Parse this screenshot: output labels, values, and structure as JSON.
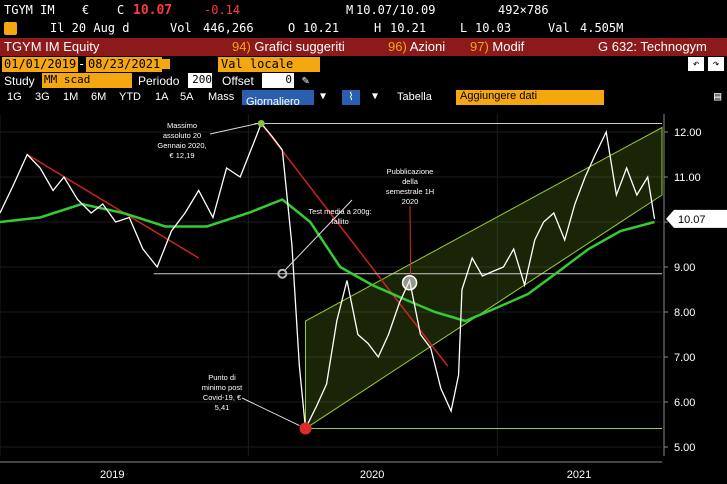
{
  "quote": {
    "ticker": "TGYM IM",
    "currency_sym": "€",
    "c_label": "C",
    "last": "10.07",
    "change": "-0.14",
    "m_label": "M",
    "bid_ask": "10.07/10.09",
    "size": "492×786",
    "date_line": "Il 20 Aug d",
    "vol_label": "Vol",
    "vol": "446,266",
    "o_label": "O",
    "open": "10.21",
    "h_label": "H",
    "high": "10.21",
    "l_label": "L",
    "low": "10.03",
    "val_label": "Val",
    "value": "4.505M"
  },
  "toolbar": {
    "security": "TGYM IM Equity",
    "menu1_num": "94)",
    "menu1": "Grafici suggeriti",
    "menu2_num": "96)",
    "menu2": "Azioni",
    "menu3_num": "97)",
    "menu3": "Modif",
    "page": "G 632: Technogym"
  },
  "range": {
    "start": "01/01/2019",
    "end": "08/23/2021",
    "currency": "Val locale",
    "study_label": "Study",
    "study": "MM scad",
    "period_label": "Periodo",
    "period": "200",
    "offset_label": "Offset",
    "offset": "0"
  },
  "periods": {
    "items": [
      "1G",
      "3G",
      "1M",
      "6M",
      "YTD",
      "1A",
      "5A",
      "Mass"
    ],
    "active": "Giornaliero",
    "table": "Tabella",
    "add_data": "Aggiungere dati"
  },
  "colors": {
    "price": "#ffffff",
    "ma200": "#33cc33",
    "down_trend": "#cc2222",
    "channel": "#9acd32",
    "amber": "#f4a70e",
    "bar_red": "#8c1a1a"
  },
  "chart_data": {
    "type": "line",
    "ylim": [
      4.8,
      12.4
    ],
    "x_labels": [
      "2019",
      "2020",
      "2021"
    ],
    "y_ticks": [
      5.0,
      6.0,
      7.0,
      8.0,
      9.0,
      10.0,
      11.0,
      12.0
    ],
    "last_price_label": "10.07",
    "series": [
      {
        "x": [
          "2019-01-01",
          "2019-01-20",
          "2019-02-10",
          "2019-03-01",
          "2019-03-20",
          "2019-04-05",
          "2019-04-25",
          "2019-05-15",
          "2019-06-01",
          "2019-06-20",
          "2019-07-10",
          "2019-07-30",
          "2019-08-20",
          "2019-09-10",
          "2019-09-30",
          "2019-10-20",
          "2019-11-10",
          "2019-11-30",
          "2019-12-20",
          "2020-01-10",
          "2020-01-20",
          "2020-02-05",
          "2020-02-20",
          "2020-03-05",
          "2020-03-16",
          "2020-03-25",
          "2020-04-10",
          "2020-04-25",
          "2020-05-10",
          "2020-05-25",
          "2020-06-10",
          "2020-06-25",
          "2020-07-10",
          "2020-07-25",
          "2020-08-10",
          "2020-08-25",
          "2020-09-10",
          "2020-09-25",
          "2020-10-10",
          "2020-10-25",
          "2020-11-05",
          "2020-11-10",
          "2020-11-25",
          "2020-12-10",
          "2020-12-25",
          "2021-01-10",
          "2021-01-25",
          "2021-02-10",
          "2021-02-25",
          "2021-03-10",
          "2021-03-25",
          "2021-04-10",
          "2021-04-25",
          "2021-05-10",
          "2021-05-25",
          "2021-06-10",
          "2021-06-25",
          "2021-07-10",
          "2021-07-25",
          "2021-08-10",
          "2021-08-20"
        ],
        "y": [
          10.2,
          10.8,
          11.5,
          11.2,
          10.7,
          11.0,
          10.5,
          10.2,
          10.4,
          10.0,
          10.1,
          9.4,
          9.0,
          9.8,
          10.2,
          10.7,
          10.1,
          11.2,
          11.0,
          11.8,
          12.19,
          11.9,
          11.6,
          9.5,
          6.8,
          5.41,
          5.9,
          6.4,
          7.8,
          8.7,
          7.5,
          7.3,
          7.0,
          7.5,
          8.2,
          8.7,
          7.5,
          7.2,
          6.3,
          5.8,
          6.6,
          8.5,
          9.2,
          8.8,
          8.9,
          9.0,
          9.4,
          8.6,
          9.6,
          10.0,
          10.2,
          9.6,
          10.4,
          11.0,
          11.5,
          12.0,
          10.6,
          11.2,
          10.6,
          11.0,
          10.07
        ]
      },
      {
        "x": [
          "2019-01-01",
          "2019-03-01",
          "2019-05-01",
          "2019-07-01",
          "2019-09-01",
          "2019-11-01",
          "2020-01-01",
          "2020-02-20",
          "2020-04-01",
          "2020-05-15",
          "2020-07-01",
          "2020-08-15",
          "2020-10-01",
          "2020-11-15",
          "2021-01-01",
          "2021-02-15",
          "2021-04-01",
          "2021-05-15",
          "2021-07-01",
          "2021-08-20"
        ],
        "y": [
          10.0,
          10.1,
          10.4,
          10.2,
          9.9,
          9.9,
          10.2,
          10.5,
          10.0,
          9.0,
          8.6,
          8.3,
          8.0,
          7.8,
          8.1,
          8.4,
          8.9,
          9.4,
          9.8,
          10.0
        ]
      }
    ],
    "annotations": [
      "Massimo assoluto 20 Gennaio 2020, € 12,19",
      "Test media a 200g: fallito",
      "Pubblicazione della semestrale 1H 2020",
      "Punto di minimo post Covid-19, € 5,41"
    ]
  }
}
